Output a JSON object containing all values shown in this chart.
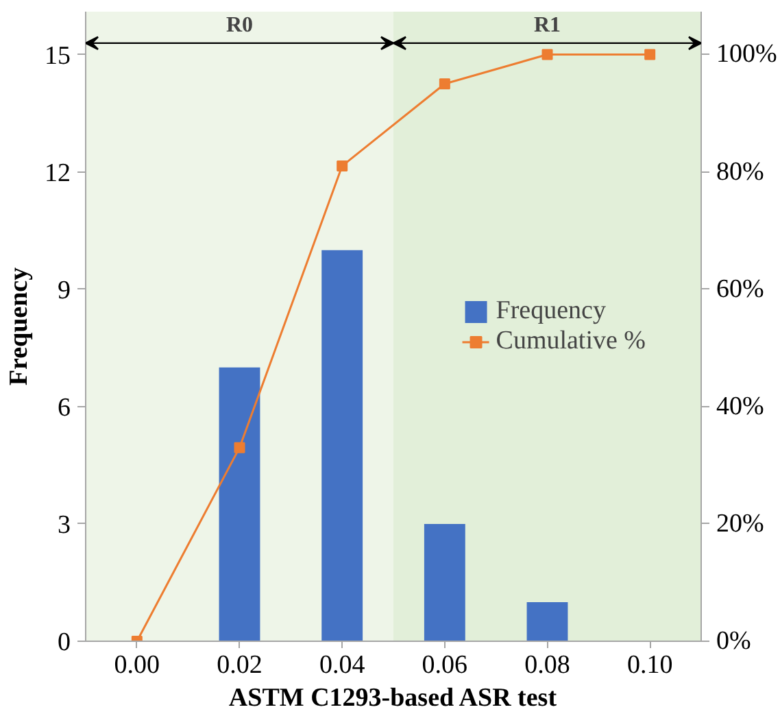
{
  "chart_data": {
    "type": "bar",
    "xlabel": "ASTM C1293-based ASR test",
    "ylabel": "Frequency",
    "x": [
      0.0,
      0.02,
      0.04,
      0.06,
      0.08,
      0.1
    ],
    "xlim": [
      -0.01,
      0.11
    ],
    "xticks": [
      {
        "value": 0,
        "label": "0.00"
      },
      {
        "value": 0.02,
        "label": "0.02"
      },
      {
        "value": 0.04,
        "label": "0.04"
      },
      {
        "value": 0.06,
        "label": "0.06"
      },
      {
        "value": 0.08,
        "label": "0.08"
      },
      {
        "value": 0.1,
        "label": "0.10"
      }
    ],
    "ylim": [
      0,
      16.1
    ],
    "yticks": [
      0,
      3,
      6,
      9,
      12,
      15
    ],
    "y2lim": [
      0,
      107.3
    ],
    "y2ticks": [
      {
        "value": 0,
        "label": "0%"
      },
      {
        "value": 20,
        "label": "20%"
      },
      {
        "value": 40,
        "label": "40%"
      },
      {
        "value": 60,
        "label": "60%"
      },
      {
        "value": 80,
        "label": "80%"
      },
      {
        "value": 100,
        "label": "100%"
      }
    ],
    "series": [
      {
        "name": "Frequency",
        "type": "bar",
        "color": "#4472c4",
        "values": [
          0,
          7,
          10,
          3,
          1,
          0
        ]
      },
      {
        "name": "Cumulative %",
        "type": "line",
        "axis": "y2",
        "color": "#ed7d31",
        "marker": "square",
        "values": [
          0,
          33,
          81,
          95,
          100,
          100
        ]
      }
    ],
    "bands": [
      {
        "axis": "x",
        "from": -0.01,
        "to": 0.05,
        "label": "R0",
        "color": "#eef5e8"
      },
      {
        "axis": "x",
        "from": 0.05,
        "to": 0.11,
        "label": "R1",
        "color": "#e2efd9"
      }
    ],
    "legend": "right",
    "grid": false
  }
}
